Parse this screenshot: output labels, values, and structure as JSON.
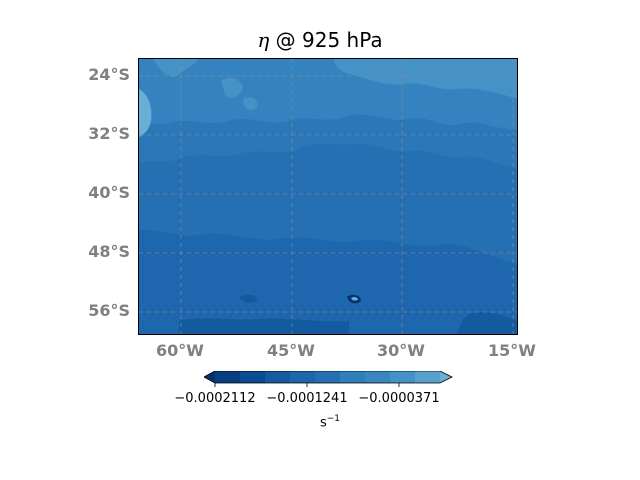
{
  "title": {
    "symbol": "η",
    "rest": " @ 925 hPa"
  },
  "lat_labels": [
    "24°S",
    "32°S",
    "40°S",
    "48°S",
    "56°S"
  ],
  "lon_labels": [
    "60°W",
    "45°W",
    "30°W",
    "15°W"
  ],
  "colorbar": {
    "ticks": [
      "−0.0002112",
      "−0.0001241",
      "−0.0000371"
    ],
    "units_base": "s",
    "units_exp": "−1",
    "colors": [
      "#08306b",
      "#083f80",
      "#0b4b91",
      "#135a9e",
      "#1c67a8",
      "#2470b2",
      "#2e7ebc",
      "#3887c1",
      "#4292c6",
      "#56a0ce",
      "#6aaed6"
    ]
  },
  "colors": {
    "label_gray": "#808080",
    "grid": "#8c8c8c",
    "band_far_south": "#1e66ad",
    "band_south": "#2470b2",
    "band_mid": "#2b78b8",
    "band_north": "#3482bf",
    "band_ne": "#4592c6",
    "coast_light": "#6aaed6"
  }
}
